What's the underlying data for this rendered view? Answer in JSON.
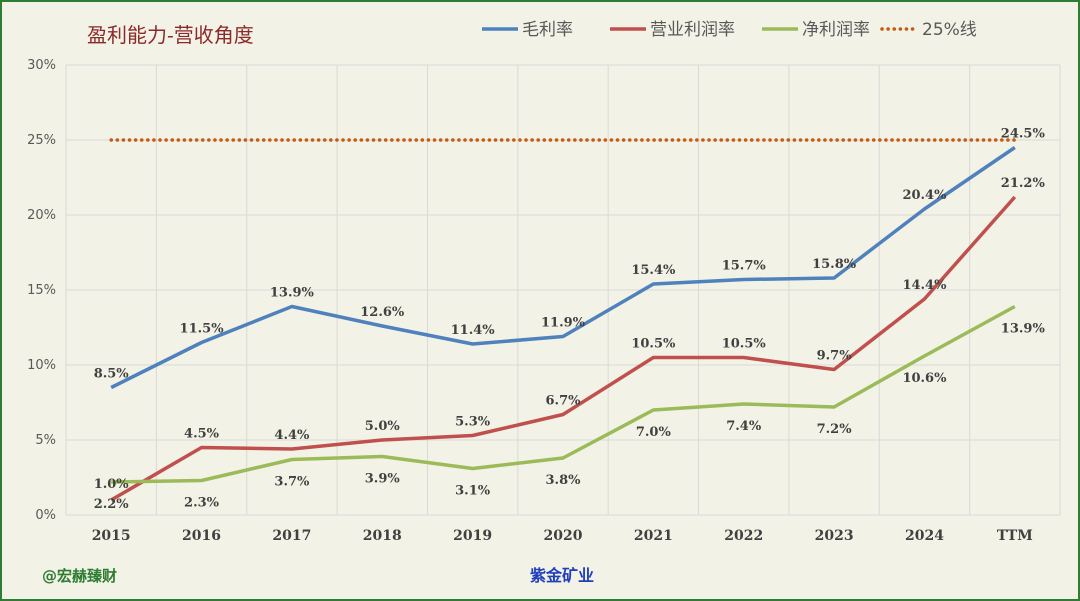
{
  "chart_data": {
    "type": "line",
    "title": "盈利能力-营收角度",
    "categories": [
      "2015",
      "2016",
      "2017",
      "2018",
      "2019",
      "2020",
      "2021",
      "2022",
      "2023",
      "2024",
      "TTM"
    ],
    "ylim": [
      0,
      30
    ],
    "yticks": [
      "0%",
      "5%",
      "10%",
      "15%",
      "20%",
      "25%",
      "30%"
    ],
    "grid": true,
    "legend_position": "top",
    "series": [
      {
        "name": "毛利率",
        "color": "#4f81bd",
        "values": [
          8.5,
          11.5,
          13.9,
          12.6,
          11.4,
          11.9,
          15.4,
          15.7,
          15.8,
          20.4,
          24.5
        ],
        "labels": [
          "8.5%",
          "11.5%",
          "13.9%",
          "12.6%",
          "11.4%",
          "11.9%",
          "15.4%",
          "15.7%",
          "15.8%",
          "20.4%",
          "24.5%"
        ]
      },
      {
        "name": "营业利润率",
        "color": "#c0504d",
        "values": [
          1.0,
          4.5,
          4.4,
          5.0,
          5.3,
          6.7,
          10.5,
          10.5,
          9.7,
          14.4,
          21.2
        ],
        "labels": [
          "1.0%",
          "4.5%",
          "4.4%",
          "5.0%",
          "5.3%",
          "6.7%",
          "10.5%",
          "10.5%",
          "9.7%",
          "14.4%",
          "21.2%"
        ]
      },
      {
        "name": "净利润率",
        "color": "#9bbb59",
        "values": [
          2.2,
          2.3,
          3.7,
          3.9,
          3.1,
          3.8,
          7.0,
          7.4,
          7.2,
          10.6,
          13.9
        ],
        "labels": [
          "2.2%",
          "2.3%",
          "3.7%",
          "3.9%",
          "3.1%",
          "3.8%",
          "7.0%",
          "7.4%",
          "7.2%",
          "10.6%",
          "13.9%"
        ]
      },
      {
        "name": "25%线",
        "color": "#c55a11",
        "values": [
          25,
          25,
          25,
          25,
          25,
          25,
          25,
          25,
          25,
          25,
          25
        ],
        "dotted": true
      }
    ]
  },
  "footer": {
    "left": "@宏赫臻财",
    "center": "紫金矿业"
  }
}
